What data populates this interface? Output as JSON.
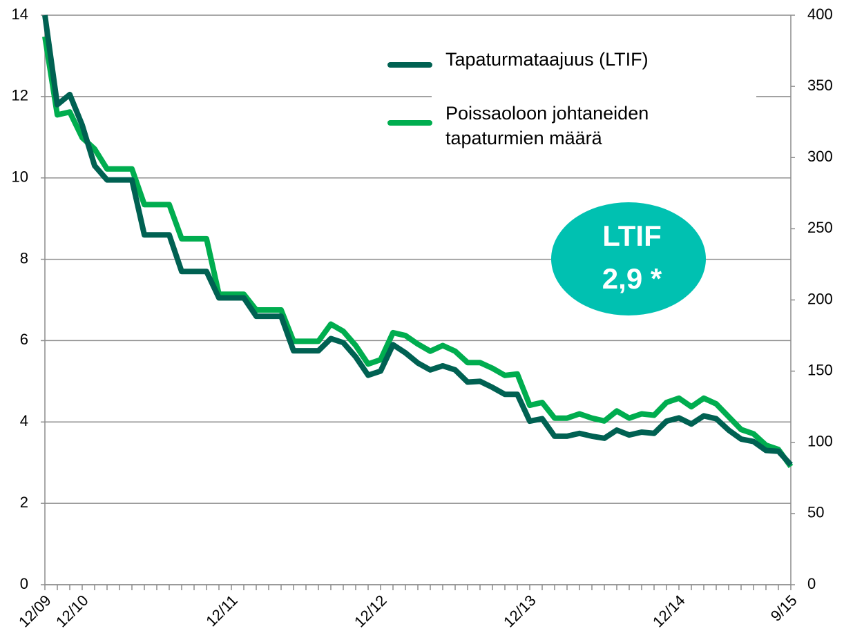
{
  "chart_data": {
    "type": "line",
    "categories": [
      "12/09",
      null,
      null,
      "12/10",
      null,
      null,
      null,
      null,
      null,
      null,
      null,
      null,
      null,
      null,
      null,
      "12/11",
      null,
      null,
      null,
      null,
      null,
      null,
      null,
      null,
      null,
      null,
      null,
      "12/12",
      null,
      null,
      null,
      null,
      null,
      null,
      null,
      null,
      null,
      null,
      null,
      "12/13",
      null,
      null,
      null,
      null,
      null,
      null,
      null,
      null,
      null,
      null,
      null,
      "12/14",
      null,
      null,
      null,
      null,
      null,
      null,
      null,
      null,
      "9/15"
    ],
    "series": [
      {
        "name": "Tapaturmataajuus (LTIF)",
        "color": "#006152",
        "axis": "y",
        "values": [
          14,
          11.8,
          12.05,
          11.3,
          10.3,
          9.95,
          9.95,
          9.95,
          8.6,
          8.6,
          8.6,
          7.7,
          7.7,
          7.7,
          7.05,
          7.05,
          7.05,
          6.6,
          6.6,
          6.6,
          5.75,
          5.75,
          5.75,
          6.05,
          5.95,
          5.6,
          5.15,
          5.25,
          5.9,
          5.7,
          5.45,
          5.28,
          5.38,
          5.28,
          4.98,
          5.0,
          4.85,
          4.68,
          4.68,
          4.02,
          4.08,
          3.65,
          3.65,
          3.72,
          3.65,
          3.6,
          3.8,
          3.68,
          3.75,
          3.72,
          4.02,
          4.1,
          3.95,
          4.15,
          4.08,
          3.8,
          3.58,
          3.52,
          3.3,
          3.28,
          2.95
        ]
      },
      {
        "name": "Poissaoloon johtaneiden tapaturmien määrä",
        "color": "#00ad4f",
        "axis": "y2",
        "values": [
          385,
          330,
          332,
          314,
          306,
          292,
          292,
          292,
          267,
          267,
          267,
          243,
          243,
          243,
          204,
          204,
          204,
          193,
          193,
          193,
          171,
          171,
          171,
          183,
          178,
          168,
          155,
          158,
          177,
          175,
          169,
          164,
          168,
          164,
          156,
          156,
          152,
          147,
          148,
          126,
          128,
          117,
          117,
          120,
          117,
          115,
          122,
          117,
          120,
          119,
          128,
          131,
          125,
          131,
          127,
          118,
          109,
          106,
          98,
          95,
          83
        ]
      }
    ],
    "ylim": [
      0,
      14
    ],
    "yticks": [
      0,
      2,
      4,
      6,
      8,
      10,
      12,
      14
    ],
    "y2lim": [
      0,
      400
    ],
    "y2ticks": [
      0,
      50,
      100,
      150,
      200,
      250,
      300,
      350,
      400
    ],
    "grid": true,
    "legend": "top-right",
    "annotation": {
      "lines": [
        "LTIF",
        "2,9 *"
      ],
      "color": "#00c1b1"
    }
  }
}
